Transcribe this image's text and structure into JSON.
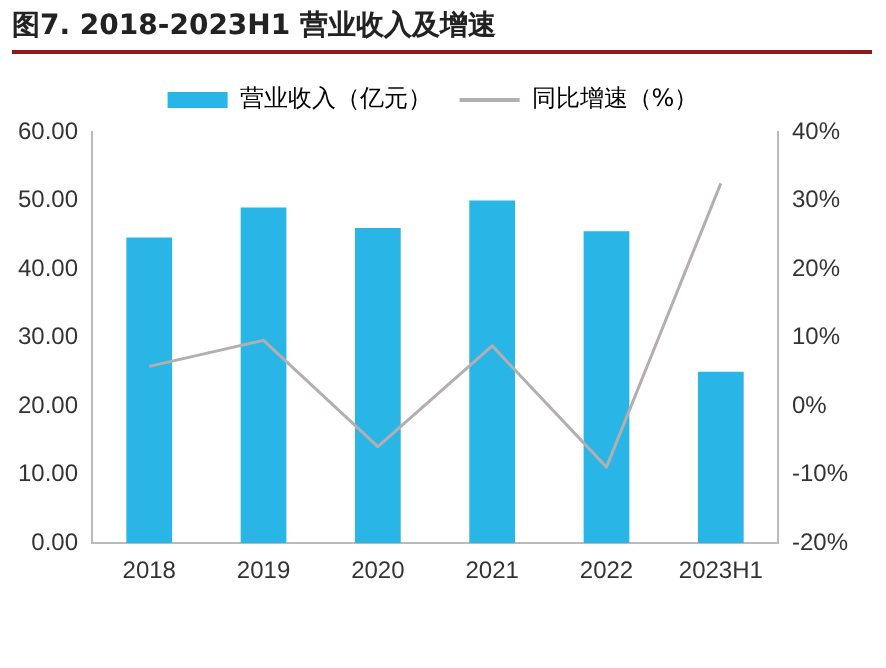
{
  "chart_data": {
    "type": "bar",
    "title": "图7. 2018-2023H1 营业收入及增速",
    "categories": [
      "2018",
      "2019",
      "2020",
      "2021",
      "2022",
      "2023H1"
    ],
    "series": [
      {
        "name": "营业收入（亿元）",
        "color": "#29b6e6",
        "values": [
          44.6,
          49.0,
          46.0,
          50.0,
          45.5,
          25.0
        ]
      },
      {
        "name": "同比增速（%）",
        "type": "line",
        "axis": "y2",
        "color": "#b4aeae",
        "values": [
          5.8,
          9.6,
          -5.9,
          8.8,
          -8.9,
          32.5
        ]
      }
    ],
    "ylim": [
      0,
      60
    ],
    "yticks": [
      {
        "value": 0,
        "label": "0.00"
      },
      {
        "value": 10,
        "label": "10.00"
      },
      {
        "value": 20,
        "label": "20.00"
      },
      {
        "value": 30,
        "label": "30.00"
      },
      {
        "value": 40,
        "label": "40.00"
      },
      {
        "value": 50,
        "label": "50.00"
      },
      {
        "value": 60,
        "label": "60.00"
      }
    ],
    "y2lim": [
      -20,
      40
    ],
    "y2ticks": [
      {
        "value": -20,
        "label": "-20%"
      },
      {
        "value": -10,
        "label": "-10%"
      },
      {
        "value": 0,
        "label": "0%"
      },
      {
        "value": 10,
        "label": "10%"
      },
      {
        "value": 20,
        "label": "20%"
      },
      {
        "value": 30,
        "label": "30%"
      },
      {
        "value": 40,
        "label": "40%"
      }
    ],
    "legend": "top",
    "grid": false,
    "marker": "none"
  }
}
